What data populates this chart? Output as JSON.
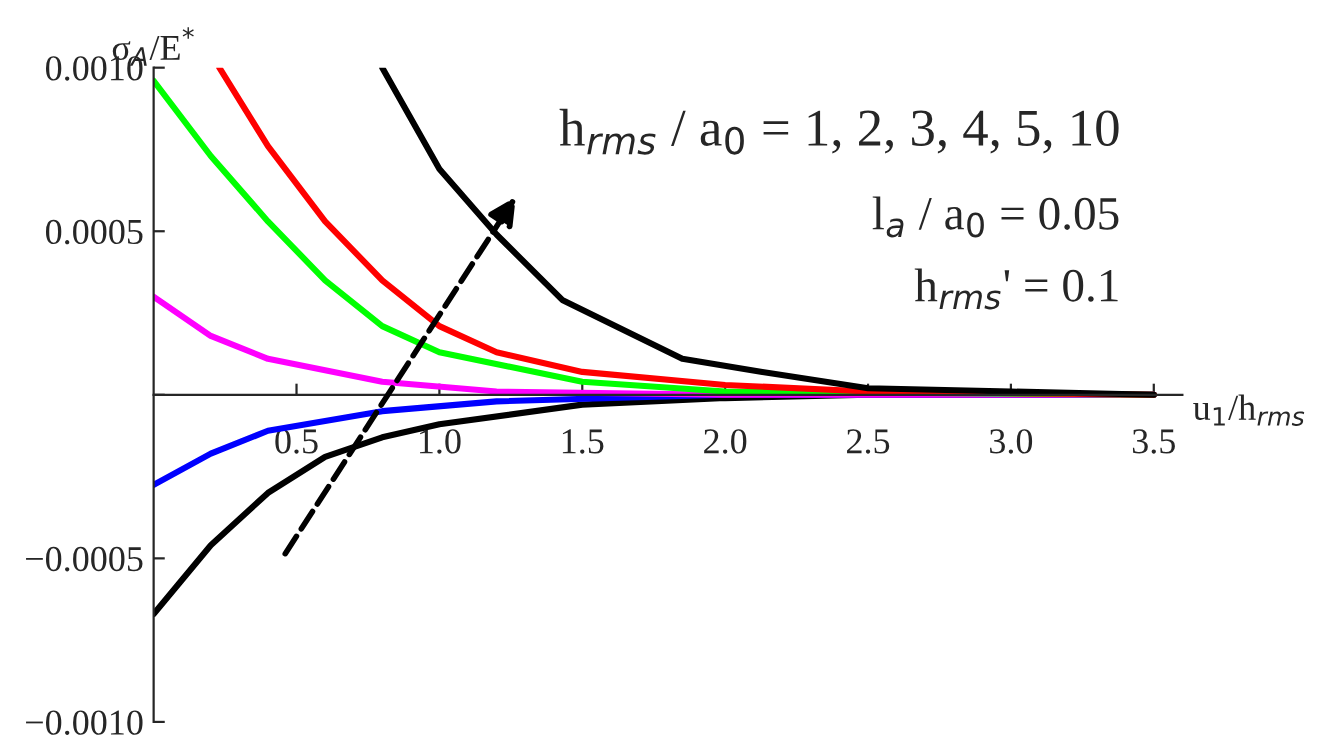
{
  "chart_data": {
    "type": "line",
    "xlabel": "u$_{1}$/h$_{rms}$",
    "ylabel": "σ$_{A}$/E$^{*}$",
    "annotations": [
      "h$_{rms}$ / a$_{0}$ = 1, 2, 3, 4, 5, 10",
      "l$_{a}$ / a$_{0}$ = 0.05",
      "h$_{rms}$' = 0.1"
    ],
    "xlim": [
      0,
      3.6
    ],
    "ylim": [
      -0.001,
      0.001
    ],
    "xticks": [
      {
        "value": 0.5,
        "label": "0.5"
      },
      {
        "value": 1.0,
        "label": "1.0"
      },
      {
        "value": 1.5,
        "label": "1.5"
      },
      {
        "value": 2.0,
        "label": "2.0"
      },
      {
        "value": 2.5,
        "label": "2.5"
      },
      {
        "value": 3.0,
        "label": "3.0"
      },
      {
        "value": 3.5,
        "label": "3.5"
      }
    ],
    "yticks": [
      {
        "value": -0.001,
        "label": "−0.0010"
      },
      {
        "value": -0.0005,
        "label": "−0.0005"
      },
      {
        "value": 0,
        "label": null
      },
      {
        "value": 0.0005,
        "label": "0.0005"
      },
      {
        "value": 0.001,
        "label": "0.0010"
      }
    ],
    "grid": false,
    "legend": false,
    "marker": "none",
    "line_style": "solid",
    "series": [
      {
        "color": "#000000",
        "x": [
          0,
          0.2,
          0.4,
          0.6,
          0.8,
          1.0,
          1.5,
          2.0,
          2.5,
          3.0,
          3.5
        ],
        "values": [
          -0.00067,
          -0.00046,
          -0.0003,
          -0.00019,
          -0.00013,
          -9e-05,
          -3e-05,
          -1e-05,
          0,
          0,
          0
        ]
      },
      {
        "color": "#0000ff",
        "x": [
          0,
          0.2,
          0.4,
          0.8,
          1.2,
          2.0,
          3.5
        ],
        "values": [
          -0.000275,
          -0.00018,
          -0.00011,
          -5e-05,
          -2e-05,
          0,
          0
        ]
      },
      {
        "color": "#ff00ff",
        "x": [
          0,
          0.2,
          0.4,
          0.8,
          1.2,
          2.0,
          3.5
        ],
        "values": [
          0.0003,
          0.00018,
          0.00011,
          4e-05,
          1e-05,
          0,
          0
        ]
      },
      {
        "color": "#00ff00",
        "x": [
          0,
          0.2,
          0.4,
          0.6,
          0.8,
          1.0,
          1.5,
          2.0,
          3.5
        ],
        "values": [
          0.00096,
          0.00073,
          0.00053,
          0.00035,
          0.00021,
          0.00013,
          4e-05,
          1e-05,
          0
        ]
      },
      {
        "color": "#ff0000",
        "x": [
          0.23,
          0.4,
          0.6,
          0.8,
          1.0,
          1.2,
          1.5,
          2.0,
          2.5,
          3.5
        ],
        "values": [
          0.001,
          0.00076,
          0.00053,
          0.00035,
          0.00021,
          0.00013,
          7e-05,
          3e-05,
          1e-05,
          0
        ]
      },
      {
        "color": "#000000",
        "x": [
          0.8,
          1.0,
          1.2,
          1.43,
          1.85,
          2.13,
          2.5,
          3.0,
          3.5
        ],
        "values": [
          0.001,
          0.00069,
          0.00049,
          0.00029,
          0.00011,
          7e-05,
          2e-05,
          1e-05,
          0
        ]
      }
    ]
  }
}
